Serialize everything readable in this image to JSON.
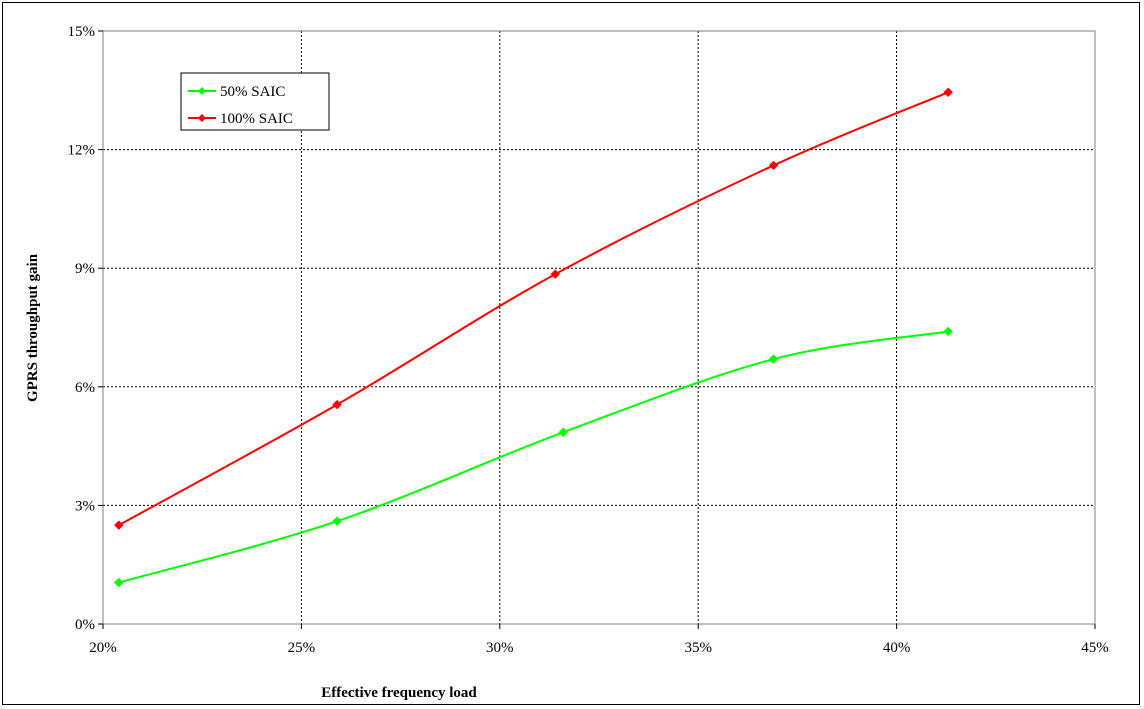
{
  "chart_data": {
    "type": "line",
    "title": "",
    "xlabel": "Effective frequency load",
    "ylabel": "GPRS throughput gain",
    "xlim": [
      20,
      45
    ],
    "ylim": [
      0,
      15
    ],
    "x_ticks": [
      "20%",
      "25%",
      "30%",
      "35%",
      "40%",
      "45%"
    ],
    "y_ticks": [
      "0%",
      "3%",
      "6%",
      "9%",
      "12%",
      "15%"
    ],
    "grid": true,
    "legend_position": "top-left",
    "series": [
      {
        "name": "50% SAIC",
        "color": "#00ff00",
        "marker": "diamond",
        "x": [
          20.4,
          25.9,
          31.6,
          36.9,
          41.3
        ],
        "y": [
          1.05,
          2.6,
          4.85,
          6.7,
          7.4
        ]
      },
      {
        "name": "100% SAIC",
        "color": "#ff0000",
        "marker": "diamond",
        "x": [
          20.4,
          25.9,
          31.4,
          36.9,
          41.3
        ],
        "y": [
          2.5,
          5.55,
          8.85,
          11.6,
          13.45
        ]
      }
    ]
  }
}
